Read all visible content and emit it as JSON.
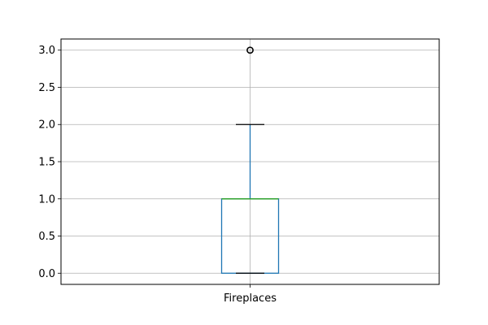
{
  "chart_data": {
    "type": "boxplot",
    "categories": [
      "Fireplaces"
    ],
    "series": [
      {
        "category": "Fireplaces",
        "whisker_low": 0.0,
        "q1": 0.0,
        "median": 1.0,
        "q3": 1.0,
        "whisker_high": 2.0,
        "outliers": [
          3.0
        ]
      }
    ],
    "yticks": [
      0.0,
      0.5,
      1.0,
      1.5,
      2.0,
      2.5,
      3.0
    ],
    "ytick_labels": [
      "0.0",
      "0.5",
      "1.0",
      "1.5",
      "2.0",
      "2.5",
      "3.0"
    ],
    "ylim": [
      -0.15,
      3.15
    ],
    "grid": true,
    "title": "",
    "xlabel": "",
    "ylabel": "",
    "colors": {
      "box": "#1f77b4",
      "whisker": "#1f77b4",
      "cap": "#000000",
      "median": "#2ca02c",
      "outlier": "#000000",
      "grid": "#b0b0b0",
      "axes": "#000000"
    }
  }
}
